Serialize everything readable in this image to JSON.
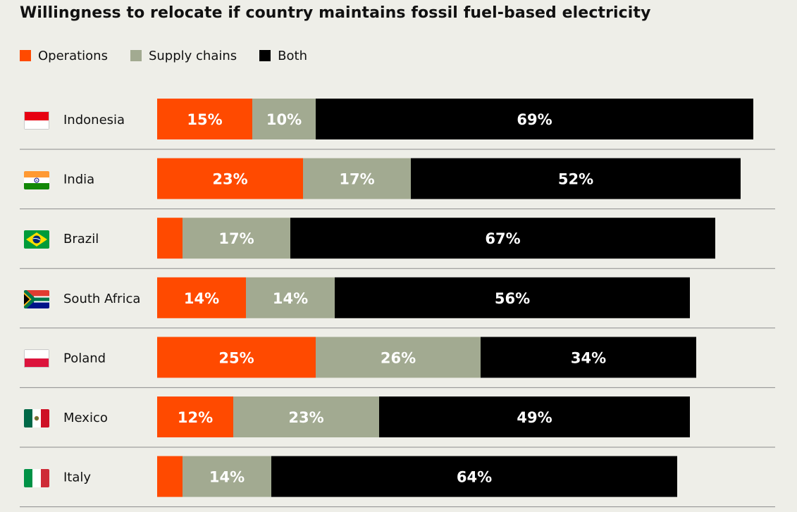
{
  "title": "Willingness to relocate if country maintains fossil fuel-based electricity",
  "colors": {
    "operations": "#ff4a00",
    "supply_chains": "#a2aa91",
    "both": "#000000",
    "background": "#eeeee8",
    "divider": "#8c8c8c"
  },
  "chart_data": {
    "type": "bar",
    "orientation": "horizontal",
    "stacked": true,
    "legend_position": "top-left",
    "categories": [
      "Indonesia",
      "India",
      "Brazil",
      "South Africa",
      "Poland",
      "Mexico",
      "Italy"
    ],
    "series": [
      {
        "name": "Operations",
        "values": [
          15,
          23,
          4,
          14,
          25,
          12,
          4
        ],
        "labels": [
          "15%",
          "23%",
          "",
          "14%",
          "25%",
          "12%",
          ""
        ]
      },
      {
        "name": "Supply chains",
        "values": [
          10,
          17,
          17,
          14,
          26,
          23,
          14
        ],
        "labels": [
          "10%",
          "17%",
          "17%",
          "14%",
          "26%",
          "23%",
          "14%"
        ]
      },
      {
        "name": "Both",
        "values": [
          69,
          52,
          67,
          56,
          34,
          49,
          64
        ],
        "labels": [
          "69%",
          "52%",
          "67%",
          "56%",
          "34%",
          "49%",
          "64%"
        ]
      }
    ],
    "xlim": [
      0,
      100
    ],
    "grid": false
  },
  "flags": [
    "indonesia-flag-icon",
    "india-flag-icon",
    "brazil-flag-icon",
    "south-africa-flag-icon",
    "poland-flag-icon",
    "mexico-flag-icon",
    "italy-flag-icon"
  ]
}
